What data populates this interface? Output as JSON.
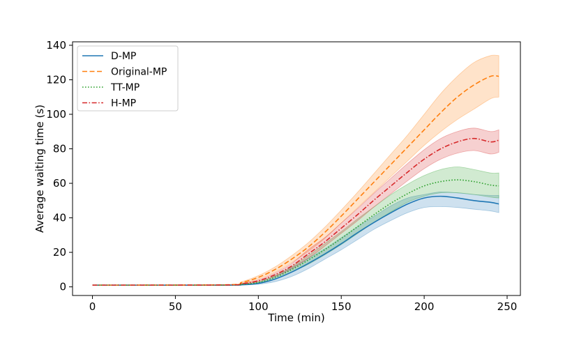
{
  "chart_data": {
    "type": "line",
    "title": "",
    "xlabel": "Time (min)",
    "ylabel": "Average waiting time (s)",
    "xlim": [
      -12,
      258
    ],
    "ylim": [
      -5,
      142
    ],
    "xticks": [
      0,
      50,
      100,
      150,
      200,
      250
    ],
    "yticks": [
      0,
      20,
      40,
      60,
      80,
      100,
      120,
      140
    ],
    "grid": false,
    "legend_position": "top-left",
    "x": [
      0,
      80,
      90,
      100,
      110,
      120,
      130,
      140,
      150,
      160,
      170,
      180,
      190,
      200,
      210,
      220,
      230,
      240,
      245
    ],
    "series": [
      {
        "name": "D-MP",
        "color": "#1f77b4",
        "dash": "solid",
        "values": [
          1,
          1,
          1.2,
          2,
          4.5,
          8.5,
          13.5,
          19,
          25,
          31.5,
          37.5,
          43,
          48,
          51.5,
          52.5,
          51.5,
          50,
          49,
          48
        ],
        "lower": [
          1,
          1,
          1.1,
          1.5,
          3,
          6,
          10.5,
          16,
          21.5,
          27.5,
          33.5,
          38.5,
          43,
          46,
          46.5,
          46,
          45,
          44,
          43
        ],
        "upper": [
          1,
          1,
          1.3,
          2.5,
          6,
          11,
          16.5,
          22,
          28.5,
          35,
          41,
          47,
          51.5,
          53.5,
          55,
          54.5,
          53.5,
          53,
          53
        ]
      },
      {
        "name": "Original-MP",
        "color": "#ff7f0e",
        "dash": "dashed",
        "values": [
          1,
          1.2,
          2.5,
          5.5,
          10,
          16,
          23,
          31.5,
          41,
          51,
          61,
          71,
          81,
          91,
          101,
          110,
          117,
          122,
          122
        ],
        "lower": [
          1,
          1.1,
          2,
          4.5,
          8.5,
          14,
          20.5,
          28,
          37,
          46,
          55,
          64,
          73,
          82,
          90,
          97,
          103,
          109,
          110
        ],
        "upper": [
          1,
          1.3,
          3,
          6.5,
          11.5,
          18,
          25.5,
          34.5,
          44.5,
          55,
          66,
          77,
          88,
          100,
          112,
          122,
          130,
          134,
          134
        ]
      },
      {
        "name": "TT-MP",
        "color": "#2ca02c",
        "dash": "dotted",
        "values": [
          1,
          1,
          1.5,
          2.5,
          5.5,
          10,
          15.5,
          21.5,
          28,
          35,
          42,
          48.5,
          54,
          58.5,
          61,
          62,
          61,
          59,
          58.5
        ],
        "lower": [
          1,
          1,
          1.2,
          2,
          4.5,
          8.5,
          13,
          18.5,
          24.5,
          31,
          37.5,
          43.5,
          49,
          52.5,
          54.5,
          54.5,
          53.5,
          52,
          51.5
        ],
        "upper": [
          1,
          1,
          1.8,
          3,
          6.5,
          11.5,
          18,
          25,
          32,
          39.5,
          46.5,
          53.5,
          59.5,
          64.5,
          68,
          69.5,
          68,
          66,
          66
        ]
      },
      {
        "name": "H-MP",
        "color": "#d62728",
        "dash": "dashdot",
        "values": [
          1,
          1.1,
          1.8,
          3.5,
          7,
          12,
          19,
          26,
          34,
          42,
          50.5,
          58.5,
          66.5,
          74,
          80,
          84,
          86,
          84,
          85
        ],
        "lower": [
          1,
          1.05,
          1.5,
          3,
          6,
          10.5,
          16.5,
          23.5,
          31,
          38.5,
          46.5,
          54,
          61.5,
          68.5,
          74,
          77.5,
          79,
          77,
          78
        ],
        "upper": [
          1,
          1.15,
          2.1,
          4,
          8,
          13.5,
          21.5,
          28.5,
          37,
          45.5,
          54.5,
          63,
          71.5,
          79.5,
          86,
          90,
          92,
          90,
          91
        ]
      }
    ]
  }
}
